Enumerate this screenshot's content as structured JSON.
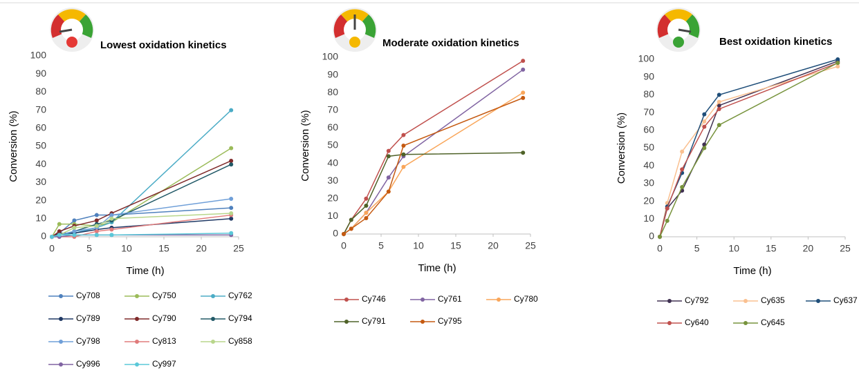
{
  "chart_data": [
    {
      "type": "line",
      "title": "Lowest oxidation kinetics",
      "x_label": "Time (h)",
      "y_label": "Conversion (%)",
      "x": [
        0,
        1,
        3,
        6,
        8,
        24
      ],
      "xlim": [
        0,
        25
      ],
      "xticks": [
        0,
        5,
        10,
        15,
        20,
        25
      ],
      "ylim": [
        0,
        100
      ],
      "yticks": [
        0,
        10,
        20,
        30,
        40,
        50,
        60,
        70,
        80,
        90,
        100
      ],
      "grid": false,
      "series": [
        {
          "name": "Cy708",
          "color": "#4f81bd",
          "values": [
            0,
            2,
            9,
            12,
            12,
            16
          ]
        },
        {
          "name": "Cy750",
          "color": "#9bbb59",
          "values": [
            0,
            7,
            7,
            6,
            8,
            49
          ]
        },
        {
          "name": "Cy762",
          "color": "#4bacc6",
          "values": [
            0,
            1,
            2,
            5,
            8,
            70
          ]
        },
        {
          "name": "Cy789",
          "color": "#1f3864",
          "values": [
            0,
            2,
            2,
            4,
            5,
            10
          ]
        },
        {
          "name": "Cy790",
          "color": "#7f2a2a",
          "values": [
            0,
            3,
            6,
            9,
            13,
            42
          ]
        },
        {
          "name": "Cy794",
          "color": "#215967",
          "values": [
            0,
            1,
            3,
            7,
            9,
            40
          ]
        },
        {
          "name": "Cy798",
          "color": "#6f9fd8",
          "values": [
            0,
            1,
            3,
            5,
            12,
            21
          ]
        },
        {
          "name": "Cy813",
          "color": "#e07b7b",
          "values": [
            0,
            0,
            0,
            3,
            4,
            12
          ]
        },
        {
          "name": "Cy858",
          "color": "#b8d68b",
          "values": [
            0,
            1,
            5,
            6,
            10,
            13
          ]
        },
        {
          "name": "Cy996",
          "color": "#8064a2",
          "values": [
            0,
            0,
            1,
            1,
            1,
            1
          ]
        },
        {
          "name": "Cy997",
          "color": "#5ac8d8",
          "values": [
            0,
            1,
            1,
            1,
            1,
            2
          ]
        }
      ]
    },
    {
      "type": "line",
      "title": "Moderate oxidation kinetics",
      "x_label": "Time (h)",
      "y_label": "Conversion (%)",
      "x": [
        0,
        1,
        3,
        6,
        8,
        24
      ],
      "xlim": [
        0,
        25
      ],
      "xticks": [
        0,
        5,
        10,
        15,
        20,
        25
      ],
      "ylim": [
        0,
        100
      ],
      "yticks": [
        0,
        10,
        20,
        30,
        40,
        50,
        60,
        70,
        80,
        90,
        100
      ],
      "grid": false,
      "series": [
        {
          "name": "Cy746",
          "color": "#c0504d",
          "values": [
            0,
            8,
            20,
            47,
            56,
            98
          ]
        },
        {
          "name": "Cy761",
          "color": "#8064a2",
          "values": [
            0,
            3,
            12,
            32,
            44,
            93
          ]
        },
        {
          "name": "Cy780",
          "color": "#f9a65a",
          "values": [
            0,
            3,
            12,
            24,
            38,
            80
          ]
        },
        {
          "name": "Cy791",
          "color": "#4f6228",
          "values": [
            0,
            8,
            16,
            44,
            45,
            46
          ]
        },
        {
          "name": "Cy795",
          "color": "#c55a11",
          "values": [
            0,
            3,
            9,
            24,
            50,
            77
          ]
        }
      ]
    },
    {
      "type": "line",
      "title": "Best oxidation kinetics",
      "x_label": "Time (h)",
      "y_label": "Conversion (%)",
      "x": [
        0,
        1,
        3,
        6,
        8,
        24
      ],
      "xlim": [
        0,
        25
      ],
      "xticks": [
        0,
        5,
        10,
        15,
        20,
        25
      ],
      "ylim": [
        0,
        100
      ],
      "yticks": [
        0,
        10,
        20,
        30,
        40,
        50,
        60,
        70,
        80,
        90,
        100
      ],
      "grid": false,
      "series": [
        {
          "name": "Cy792",
          "color": "#403152",
          "values": [
            0,
            16,
            26,
            52,
            74,
            99
          ]
        },
        {
          "name": "Cy635",
          "color": "#fac090",
          "values": [
            0,
            19,
            48,
            65,
            76,
            96
          ]
        },
        {
          "name": "Cy637",
          "color": "#1f4e79",
          "values": [
            0,
            17,
            36,
            69,
            80,
            100
          ]
        },
        {
          "name": "Cy640",
          "color": "#c0504d",
          "values": [
            0,
            16,
            38,
            62,
            72,
            98
          ]
        },
        {
          "name": "Cy645",
          "color": "#77933c",
          "values": [
            0,
            9,
            28,
            50,
            63,
            98
          ]
        }
      ]
    }
  ]
}
